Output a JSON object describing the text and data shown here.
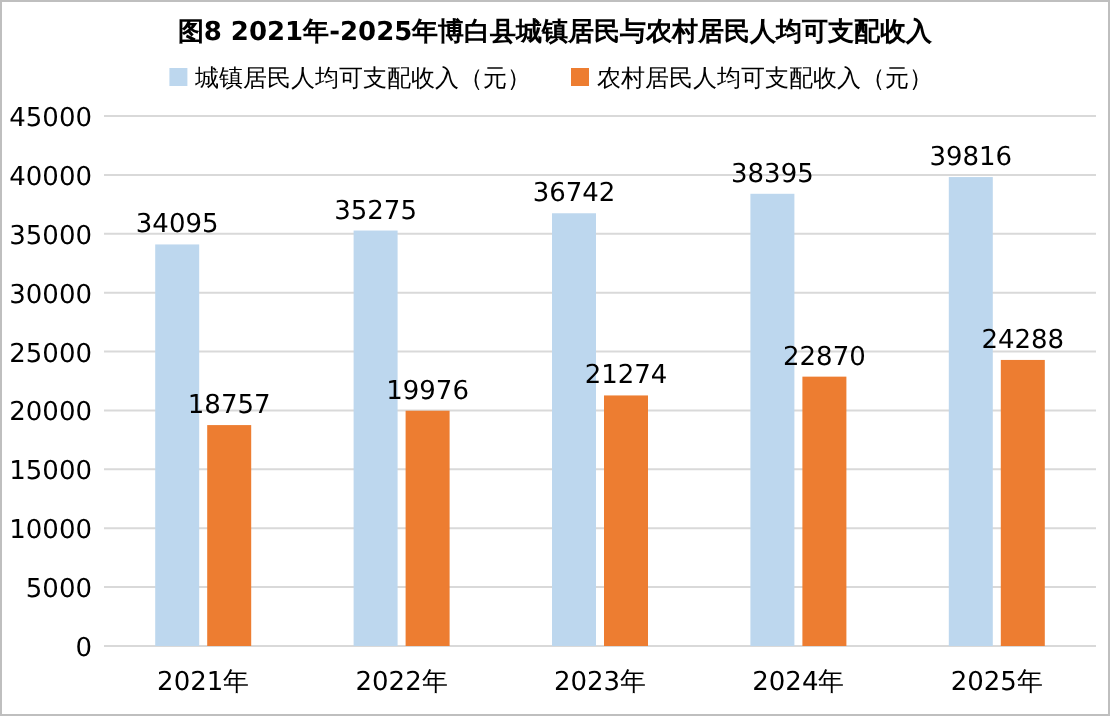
{
  "chart_data": {
    "type": "bar",
    "title": "图8 2021年-2025年博白县城镇居民与农村居民人均可支配收入",
    "categories": [
      "2021年",
      "2022年",
      "2023年",
      "2024年",
      "2025年"
    ],
    "series": [
      {
        "name": "城镇居民人均可支配收入（元）",
        "color": "#bdd7ee",
        "values": [
          34095,
          35275,
          36742,
          38395,
          39816
        ]
      },
      {
        "name": "农村居民人均可支配收入（元）",
        "color": "#ed7d31",
        "values": [
          18757,
          19976,
          21274,
          22870,
          24288
        ]
      }
    ],
    "ylim": [
      0,
      45000
    ],
    "yticks": [
      0,
      5000,
      10000,
      15000,
      20000,
      25000,
      30000,
      35000,
      40000,
      45000
    ],
    "grid": "y",
    "legend": "top",
    "data_labels": true
  }
}
